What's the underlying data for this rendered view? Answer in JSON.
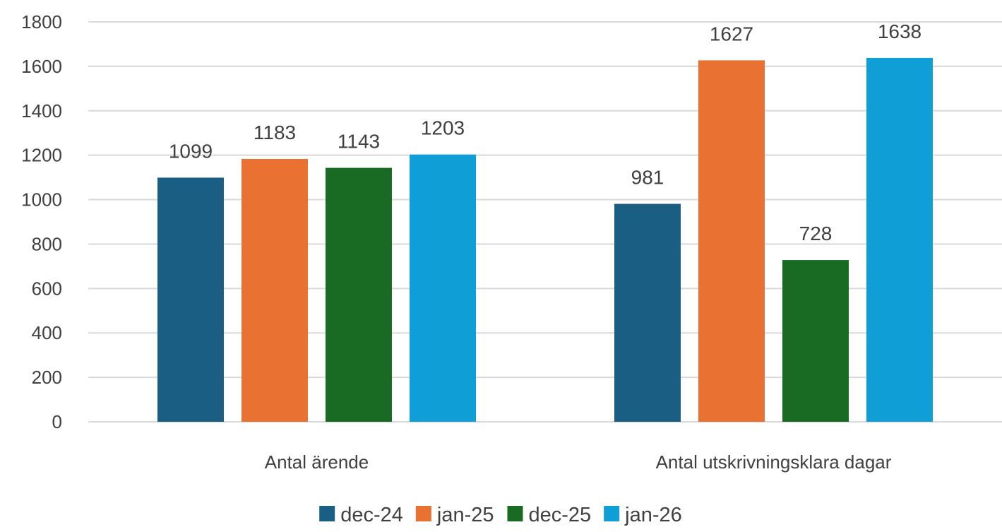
{
  "chart_data": {
    "type": "bar",
    "title": "",
    "xlabel": "",
    "ylabel": "",
    "categories": [
      "Antal ärende",
      "Antal utskrivningsklara dagar"
    ],
    "series": [
      {
        "name": "dec-24",
        "color": "#1a5e84",
        "values": [
          1099,
          981
        ]
      },
      {
        "name": "jan-25",
        "color": "#e97132",
        "values": [
          1183,
          1627
        ]
      },
      {
        "name": "dec-25",
        "color": "#196b24",
        "values": [
          1143,
          728
        ]
      },
      {
        "name": "jan-26",
        "color": "#0f9ed5",
        "values": [
          1203,
          1638
        ]
      }
    ],
    "ylim": [
      0,
      1800
    ],
    "yticks": [
      0,
      200,
      400,
      600,
      800,
      1000,
      1200,
      1400,
      1600,
      1800
    ],
    "grid": true,
    "legend": "bottom",
    "data_labels": true
  }
}
